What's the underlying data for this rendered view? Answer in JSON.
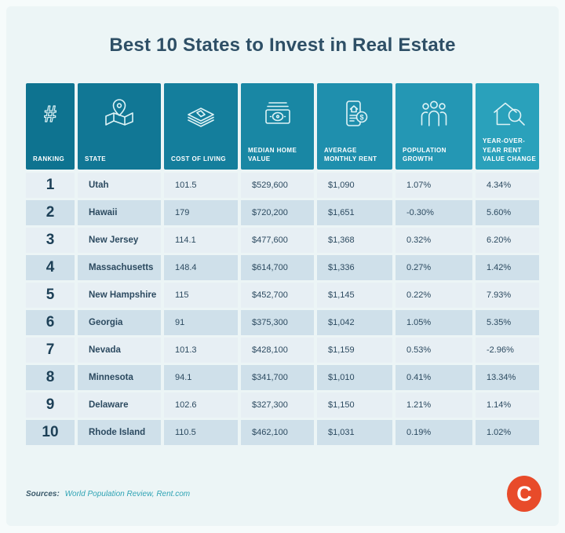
{
  "title": "Best 10 States to Invest in Real Estate",
  "chart_data": {
    "type": "table",
    "title": "Best 10 States to Invest in Real Estate",
    "columns": [
      {
        "key": "ranking",
        "label": "RANKING",
        "icon": "hash-icon",
        "header_color": "#0e7390"
      },
      {
        "key": "state",
        "label": "STATE",
        "icon": "map-pin-icon",
        "header_color": "#117795"
      },
      {
        "key": "cost_of_living",
        "label": "COST OF LIVING",
        "icon": "cash-stack-icon",
        "header_color": "#147e9c"
      },
      {
        "key": "median_home_value",
        "label": "MEDIAN HOME VALUE",
        "icon": "banknote-icon",
        "header_color": "#1987a4"
      },
      {
        "key": "average_monthly_rent",
        "label": "AVERAGE MONTHLY RENT",
        "icon": "lease-document-icon",
        "header_color": "#1f8fad"
      },
      {
        "key": "population_growth",
        "label": "POPULATION GROWTH",
        "icon": "people-icon",
        "header_color": "#2497b4"
      },
      {
        "key": "yoy_rent_value_change",
        "label": "YEAR-OVER-YEAR RENT VALUE CHANGE",
        "icon": "house-magnifier-icon",
        "header_color": "#2aa1bb"
      }
    ],
    "rows": [
      {
        "ranking": "1",
        "state": "Utah",
        "cost_of_living": "101.5",
        "median_home_value": "$529,600",
        "average_monthly_rent": "$1,090",
        "population_growth": "1.07%",
        "yoy_rent_value_change": "4.34%"
      },
      {
        "ranking": "2",
        "state": "Hawaii",
        "cost_of_living": "179",
        "median_home_value": "$720,200",
        "average_monthly_rent": "$1,651",
        "population_growth": "-0.30%",
        "yoy_rent_value_change": "5.60%"
      },
      {
        "ranking": "3",
        "state": "New Jersey",
        "cost_of_living": "114.1",
        "median_home_value": "$477,600",
        "average_monthly_rent": "$1,368",
        "population_growth": "0.32%",
        "yoy_rent_value_change": "6.20%"
      },
      {
        "ranking": "4",
        "state": "Massachusetts",
        "cost_of_living": "148.4",
        "median_home_value": "$614,700",
        "average_monthly_rent": "$1,336",
        "population_growth": "0.27%",
        "yoy_rent_value_change": "1.42%"
      },
      {
        "ranking": "5",
        "state": "New Hampshire",
        "cost_of_living": "115",
        "median_home_value": "$452,700",
        "average_monthly_rent": "$1,145",
        "population_growth": "0.22%",
        "yoy_rent_value_change": "7.93%"
      },
      {
        "ranking": "6",
        "state": "Georgia",
        "cost_of_living": "91",
        "median_home_value": "$375,300",
        "average_monthly_rent": "$1,042",
        "population_growth": "1.05%",
        "yoy_rent_value_change": "5.35%"
      },
      {
        "ranking": "7",
        "state": "Nevada",
        "cost_of_living": "101.3",
        "median_home_value": "$428,100",
        "average_monthly_rent": "$1,159",
        "population_growth": "0.53%",
        "yoy_rent_value_change": "-2.96%"
      },
      {
        "ranking": "8",
        "state": "Minnesota",
        "cost_of_living": "94.1",
        "median_home_value": "$341,700",
        "average_monthly_rent": "$1,010",
        "population_growth": "0.41%",
        "yoy_rent_value_change": "13.34%"
      },
      {
        "ranking": "9",
        "state": "Delaware",
        "cost_of_living": "102.6",
        "median_home_value": "$327,300",
        "average_monthly_rent": "$1,150",
        "population_growth": "1.21%",
        "yoy_rent_value_change": "1.14%"
      },
      {
        "ranking": "10",
        "state": "Rhode Island",
        "cost_of_living": "110.5",
        "median_home_value": "$462,100",
        "average_monthly_rent": "$1,031",
        "population_growth": "0.19%",
        "yoy_rent_value_change": "1.02%"
      }
    ]
  },
  "footer": {
    "sources_label": "Sources:",
    "links": [
      {
        "label": "World Population Review,"
      },
      {
        "label": "Rent.com"
      }
    ],
    "logo_letter": "C"
  },
  "colors": {
    "page_bg": "#f6fbfb",
    "card_bg": "#ecf5f6",
    "title_text": "#2e4f66",
    "row_odd": "#e7eff4",
    "row_even": "#cfe0ea",
    "body_text": "#2c4a60",
    "link": "#2fa3b4",
    "logo_orange": "#e84b2a",
    "header_teal_dark": "#0e7390",
    "header_teal_light": "#2aa1bb"
  }
}
